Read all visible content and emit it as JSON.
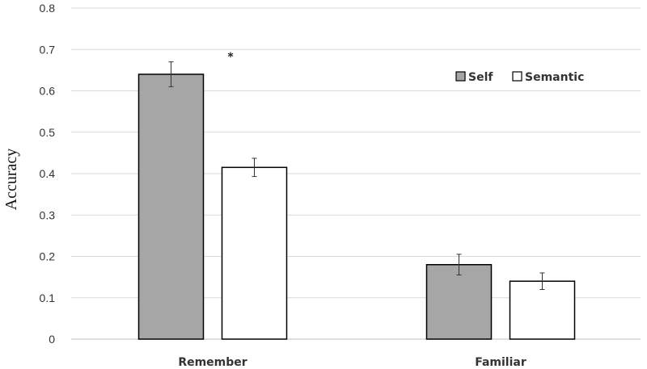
{
  "chart_data": {
    "type": "bar",
    "title": "",
    "xlabel": "",
    "ylabel": "Accuracy",
    "ylim": [
      0,
      0.8
    ],
    "yticks": [
      "0",
      "0.1",
      "0.2",
      "0.3",
      "0.4",
      "0.5",
      "0.6",
      "0.7",
      "0.8"
    ],
    "grid": true,
    "legend_position": "top-right",
    "categories": [
      "Remember",
      "Familiar"
    ],
    "series": [
      {
        "name": "Self",
        "values": [
          0.64,
          0.18
        ],
        "errors": [
          0.03,
          0.025
        ],
        "color": "#a6a6a6"
      },
      {
        "name": "Semantic",
        "values": [
          0.415,
          0.14
        ],
        "errors": [
          0.022,
          0.02
        ],
        "color": "#ffffff"
      }
    ],
    "annotations": [
      {
        "text": "*",
        "category": "Remember"
      }
    ]
  }
}
